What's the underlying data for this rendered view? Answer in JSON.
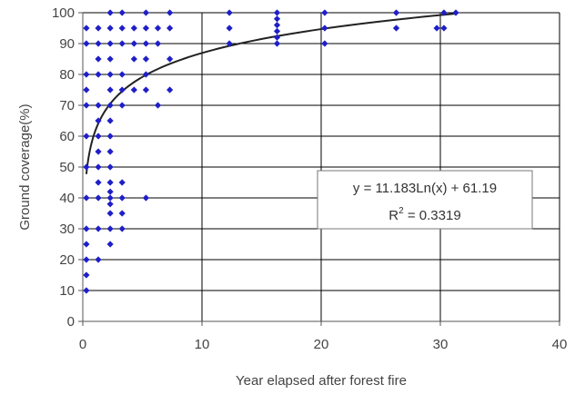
{
  "chart_data": {
    "type": "scatter",
    "xlabel": "Year elapsed after forest fire",
    "ylabel": "Ground coverage(%)",
    "xlim": [
      0,
      40
    ],
    "ylim": [
      0,
      100
    ],
    "x_ticks": [
      "0",
      "10",
      "20",
      "30",
      "40"
    ],
    "y_ticks": [
      "0",
      "10",
      "20",
      "30",
      "40",
      "50",
      "60",
      "70",
      "80",
      "90",
      "100"
    ],
    "grid": "horizontal and vertical at major ticks",
    "legend": "none",
    "colors": {
      "points": "#1f1fc8",
      "trend": "#222222",
      "grid": "#000000",
      "plot_background": "#ffffff"
    },
    "series": [
      {
        "marker": "diamond",
        "points": [
          [
            0.3,
            10
          ],
          [
            0.3,
            15
          ],
          [
            0.3,
            20
          ],
          [
            0.3,
            25
          ],
          [
            0.3,
            30
          ],
          [
            0.3,
            40
          ],
          [
            0.3,
            50
          ],
          [
            0.3,
            60
          ],
          [
            0.3,
            70
          ],
          [
            0.3,
            75
          ],
          [
            0.3,
            80
          ],
          [
            0.3,
            90
          ],
          [
            0.3,
            95
          ],
          [
            1.3,
            20
          ],
          [
            1.3,
            30
          ],
          [
            1.3,
            40
          ],
          [
            1.3,
            45
          ],
          [
            1.3,
            50
          ],
          [
            1.3,
            55
          ],
          [
            1.3,
            60
          ],
          [
            1.3,
            65
          ],
          [
            1.3,
            70
          ],
          [
            1.3,
            80
          ],
          [
            1.3,
            85
          ],
          [
            1.3,
            90
          ],
          [
            1.3,
            95
          ],
          [
            2.3,
            25
          ],
          [
            2.3,
            30
          ],
          [
            2.3,
            35
          ],
          [
            2.3,
            38
          ],
          [
            2.3,
            40
          ],
          [
            2.3,
            42
          ],
          [
            2.3,
            45
          ],
          [
            2.3,
            50
          ],
          [
            2.3,
            55
          ],
          [
            2.3,
            60
          ],
          [
            2.3,
            65
          ],
          [
            2.3,
            70
          ],
          [
            2.3,
            75
          ],
          [
            2.3,
            80
          ],
          [
            2.3,
            85
          ],
          [
            2.3,
            90
          ],
          [
            2.3,
            95
          ],
          [
            2.3,
            100
          ],
          [
            3.3,
            30
          ],
          [
            3.3,
            35
          ],
          [
            3.3,
            40
          ],
          [
            3.3,
            45
          ],
          [
            3.3,
            70
          ],
          [
            3.3,
            75
          ],
          [
            3.3,
            80
          ],
          [
            3.3,
            90
          ],
          [
            3.3,
            95
          ],
          [
            3.3,
            100
          ],
          [
            4.3,
            75
          ],
          [
            4.3,
            85
          ],
          [
            4.3,
            90
          ],
          [
            4.3,
            95
          ],
          [
            5.3,
            40
          ],
          [
            5.3,
            75
          ],
          [
            5.3,
            80
          ],
          [
            5.3,
            85
          ],
          [
            5.3,
            90
          ],
          [
            5.3,
            95
          ],
          [
            5.3,
            100
          ],
          [
            6.3,
            70
          ],
          [
            6.3,
            90
          ],
          [
            6.3,
            95
          ],
          [
            7.3,
            75
          ],
          [
            7.3,
            85
          ],
          [
            7.3,
            95
          ],
          [
            7.3,
            100
          ],
          [
            12.3,
            90
          ],
          [
            12.3,
            95
          ],
          [
            12.3,
            100
          ],
          [
            16.3,
            90
          ],
          [
            16.3,
            92
          ],
          [
            16.3,
            94
          ],
          [
            16.3,
            96
          ],
          [
            16.3,
            98
          ],
          [
            16.3,
            100
          ],
          [
            20.3,
            90
          ],
          [
            20.3,
            95
          ],
          [
            20.3,
            100
          ],
          [
            26.3,
            95
          ],
          [
            26.3,
            100
          ],
          [
            29.7,
            95
          ],
          [
            30.3,
            95
          ],
          [
            30.3,
            100
          ],
          [
            31.3,
            100
          ]
        ]
      }
    ],
    "trendline": {
      "type": "logarithmic",
      "a": 11.183,
      "b": 61.19,
      "x_range": [
        0.3,
        31.3
      ],
      "equation_text": "y = 11.183Ln(x) + 61.19",
      "r2_prefix": "R",
      "r2_sup": "2",
      "r2_rest": " = 0.3319"
    }
  }
}
